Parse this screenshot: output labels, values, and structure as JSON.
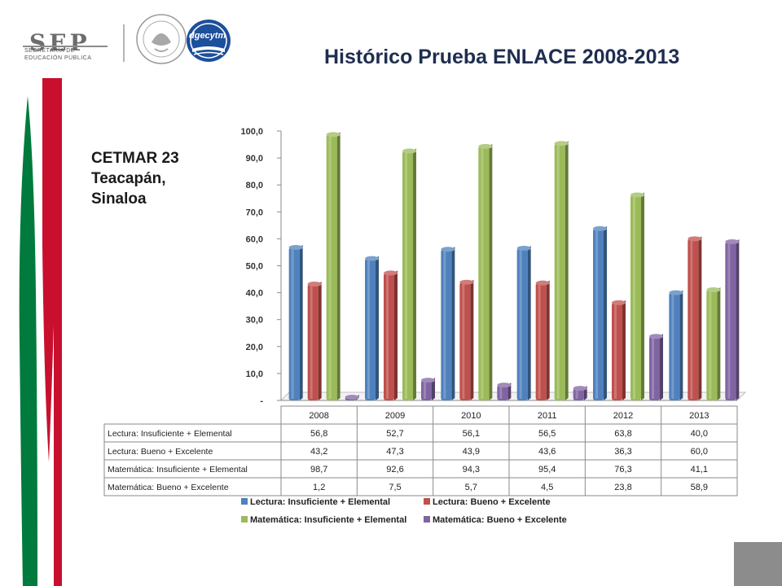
{
  "header": {
    "org_name": "SEP",
    "org_subtitle_line1": "SECRETARÍA DE",
    "org_subtitle_line2": "EDUCACIÓN PÚBLICA",
    "seal_text": "ESTADOS UNIDOS MEXICANOS",
    "dgecytm_logo_text": "dgecytm"
  },
  "page_title": "Histórico Prueba ENLACE 2008-2013",
  "school": {
    "line1": "CETMAR 23",
    "line2": "Teacapán,",
    "line3": "Sinaloa"
  },
  "colors": {
    "accent_red": "#c8102e",
    "accent_green": "#007a3d",
    "title_color": "#1f2d50",
    "corner_gray": "#8c8c8c"
  },
  "chart_data": {
    "type": "bar",
    "title": "",
    "xlabel": "",
    "ylabel": "",
    "ylim": [
      0,
      100
    ],
    "yticks": [
      "-",
      "10,0",
      "20,0",
      "30,0",
      "40,0",
      "50,0",
      "60,0",
      "70,0",
      "80,0",
      "90,0",
      "100,0"
    ],
    "categories": [
      "2008",
      "2009",
      "2010",
      "2011",
      "2012",
      "2013"
    ],
    "series": [
      {
        "name": "Lectura: Insuficiente + Elemental",
        "color": "#4f81bd",
        "values": [
          56.8,
          52.7,
          56.1,
          56.5,
          63.8,
          40.0
        ],
        "labels": [
          "56,8",
          "52,7",
          "56,1",
          "56,5",
          "63,8",
          "40,0"
        ]
      },
      {
        "name": "Lectura: Bueno + Excelente",
        "color": "#c0504d",
        "values": [
          43.2,
          47.3,
          43.9,
          43.6,
          36.3,
          60.0
        ],
        "labels": [
          "43,2",
          "47,3",
          "43,9",
          "43,6",
          "36,3",
          "60,0"
        ]
      },
      {
        "name": "Matemática: Insuficiente + Elemental",
        "color": "#9bbb59",
        "values": [
          98.7,
          92.6,
          94.3,
          95.4,
          76.3,
          41.1
        ],
        "labels": [
          "98,7",
          "92,6",
          "94,3",
          "95,4",
          "76,3",
          "41,1"
        ]
      },
      {
        "name": "Matemática: Bueno + Excelente",
        "color": "#8064a2",
        "values": [
          1.2,
          7.5,
          5.7,
          4.5,
          23.8,
          58.9
        ],
        "labels": [
          "1,2",
          "7,5",
          "5,7",
          "4,5",
          "23,8",
          "58,9"
        ]
      }
    ],
    "grid": false,
    "legend_position": "bottom",
    "data_table": true
  }
}
